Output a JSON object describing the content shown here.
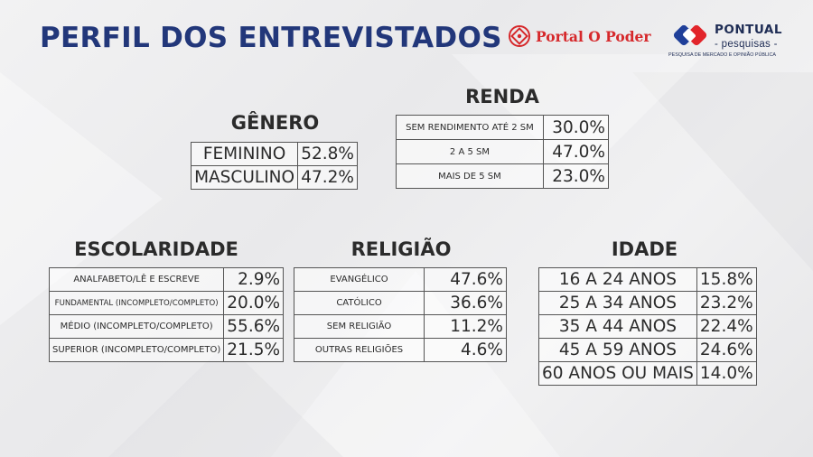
{
  "header": {
    "title": "PERFIL DOS ENTREVISTADOS"
  },
  "logos": {
    "portal": {
      "name": "Portal O Poder",
      "color": "#d6282b"
    },
    "pontual": {
      "brand": "PONTUAL",
      "sub": "- pesquisas -",
      "tagline": "PESQUISA DE MERCADO E OPINIÃO PÚBLICA",
      "color": "#1f2d55"
    }
  },
  "sections": {
    "genero": {
      "title": "GÊNERO",
      "rows": [
        {
          "label": "FEMININO",
          "value": "52.8%"
        },
        {
          "label": "MASCULINO",
          "value": "47.2%"
        }
      ]
    },
    "renda": {
      "title": "RENDA",
      "rows": [
        {
          "label": "SEM RENDIMENTO ATÉ 2 SM",
          "value": "30.0%"
        },
        {
          "label": "2 A 5 SM",
          "value": "47.0%"
        },
        {
          "label": "MAIS DE 5 SM",
          "value": "23.0%"
        }
      ]
    },
    "escolaridade": {
      "title": "ESCOLARIDADE",
      "rows": [
        {
          "label": "ANALFABETO/LÊ E ESCREVE",
          "value": "2.9%"
        },
        {
          "label": "FUNDAMENTAL (INCOMPLETO/COMPLETO)",
          "value": "20.0%"
        },
        {
          "label": "MÉDIO (INCOMPLETO/COMPLETO)",
          "value": "55.6%"
        },
        {
          "label": "SUPERIOR (INCOMPLETO/COMPLETO)",
          "value": "21.5%"
        }
      ]
    },
    "religiao": {
      "title": "RELIGIÃO",
      "rows": [
        {
          "label": "EVANGÉLICO",
          "value": "47.6%"
        },
        {
          "label": "CATÓLICO",
          "value": "36.6%"
        },
        {
          "label": "SEM RELIGIÃO",
          "value": "11.2%"
        },
        {
          "label": "OUTRAS RELIGIÕES",
          "value": "4.6%"
        }
      ]
    },
    "idade": {
      "title": "IDADE",
      "rows": [
        {
          "label": "16 A 24 ANOS",
          "value": "15.8%"
        },
        {
          "label": "25 A 34 ANOS",
          "value": "23.2%"
        },
        {
          "label": "35 A 44 ANOS",
          "value": "22.4%"
        },
        {
          "label": "45 A 59 ANOS",
          "value": "24.6%"
        },
        {
          "label": "60 ANOS OU MAIS",
          "value": "14.0%"
        }
      ]
    }
  }
}
